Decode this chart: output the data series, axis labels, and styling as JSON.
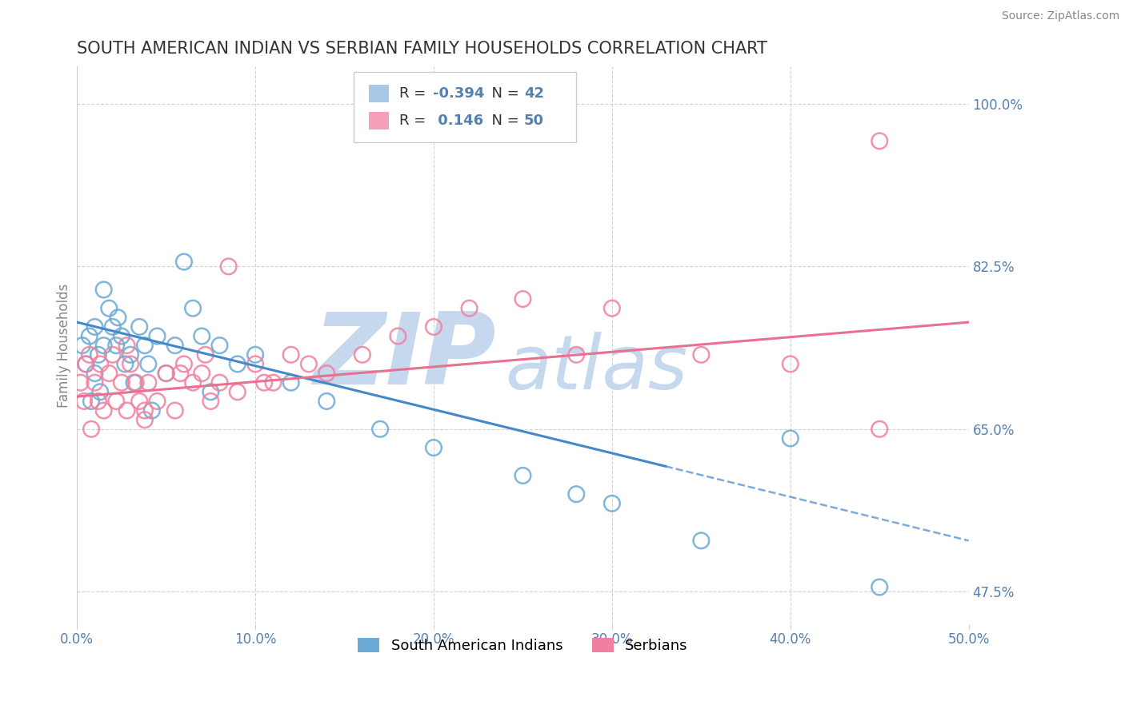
{
  "title": "SOUTH AMERICAN INDIAN VS SERBIAN FAMILY HOUSEHOLDS CORRELATION CHART",
  "source": "Source: ZipAtlas.com",
  "ylabel": "Family Households",
  "xlim": [
    0.0,
    50.0
  ],
  "ylim": [
    44.0,
    104.0
  ],
  "right_yticks": [
    47.5,
    65.0,
    82.5,
    100.0
  ],
  "xticks": [
    0.0,
    10.0,
    20.0,
    30.0,
    40.0,
    50.0
  ],
  "legend_entries": [
    {
      "color": "#a8c8e8",
      "label": "South American Indians",
      "R": -0.394,
      "N": 42
    },
    {
      "color": "#f4a0b8",
      "label": "Serbians",
      "R": 0.146,
      "N": 50
    }
  ],
  "blue_scatter_x": [
    0.3,
    0.5,
    0.7,
    0.8,
    1.0,
    1.0,
    1.2,
    1.3,
    1.5,
    1.5,
    1.8,
    2.0,
    2.2,
    2.3,
    2.5,
    2.7,
    3.0,
    3.2,
    3.5,
    3.8,
    4.0,
    4.5,
    5.0,
    5.5,
    6.0,
    6.5,
    7.0,
    8.0,
    9.0,
    10.0,
    12.0,
    14.0,
    17.0,
    20.0,
    25.0,
    28.0,
    30.0,
    35.0,
    40.0,
    45.0,
    4.2,
    7.5
  ],
  "blue_scatter_y": [
    74.0,
    72.0,
    75.0,
    68.0,
    76.0,
    71.0,
    73.0,
    69.0,
    80.0,
    74.0,
    78.0,
    76.0,
    74.0,
    77.0,
    75.0,
    72.0,
    73.0,
    70.0,
    76.0,
    74.0,
    72.0,
    75.0,
    71.0,
    74.0,
    83.0,
    78.0,
    75.0,
    74.0,
    72.0,
    73.0,
    70.0,
    68.0,
    65.0,
    63.0,
    60.0,
    58.0,
    57.0,
    53.0,
    64.0,
    48.0,
    67.0,
    69.0
  ],
  "pink_scatter_x": [
    0.2,
    0.4,
    0.5,
    0.7,
    0.8,
    1.0,
    1.2,
    1.3,
    1.5,
    1.8,
    2.0,
    2.2,
    2.5,
    2.8,
    3.0,
    3.3,
    3.5,
    3.8,
    4.0,
    4.5,
    5.0,
    5.5,
    6.0,
    6.5,
    7.0,
    7.5,
    8.0,
    9.0,
    10.0,
    11.0,
    12.0,
    14.0,
    16.0,
    18.0,
    20.0,
    22.0,
    25.0,
    30.0,
    35.0,
    40.0,
    45.0,
    2.8,
    5.8,
    8.5,
    13.0,
    3.8,
    7.2,
    10.5,
    45.0,
    28.0
  ],
  "pink_scatter_y": [
    70.0,
    68.0,
    72.0,
    73.0,
    65.0,
    70.0,
    68.0,
    72.0,
    67.0,
    71.0,
    73.0,
    68.0,
    70.0,
    67.0,
    72.0,
    70.0,
    68.0,
    66.0,
    70.0,
    68.0,
    71.0,
    67.0,
    72.0,
    70.0,
    71.0,
    68.0,
    70.0,
    69.0,
    72.0,
    70.0,
    73.0,
    71.0,
    73.0,
    75.0,
    76.0,
    78.0,
    79.0,
    78.0,
    73.0,
    72.0,
    65.0,
    74.0,
    71.0,
    82.5,
    72.0,
    67.0,
    73.0,
    70.0,
    96.0,
    73.0
  ],
  "blue_line_x1": 0.0,
  "blue_line_y1": 76.5,
  "blue_line_x2_solid": 33.0,
  "blue_line_y2_solid": 61.0,
  "blue_line_x2_dash": 50.0,
  "blue_line_y2_dash": 53.0,
  "pink_line_x1": 0.0,
  "pink_line_y1": 68.5,
  "pink_line_x2": 50.0,
  "pink_line_y2": 76.5,
  "watermark_zip": "ZIP",
  "watermark_atlas": "atlas",
  "watermark_color": "#c5d8ee",
  "background_color": "#ffffff",
  "grid_color": "#c8c8c8",
  "title_color": "#333333",
  "axis_label_color": "#5580b0",
  "scatter_blue": "#6aaad4",
  "scatter_pink": "#f080a0",
  "line_blue": "#4488cc",
  "line_pink": "#e87090"
}
